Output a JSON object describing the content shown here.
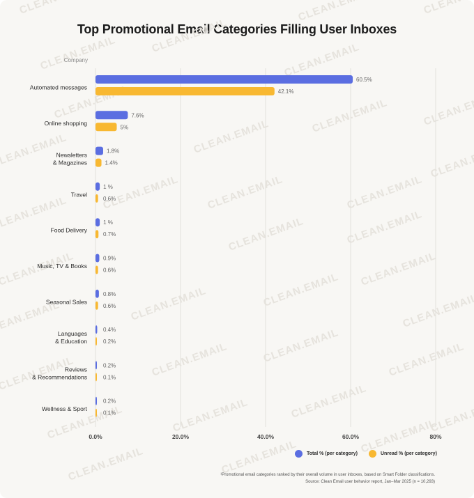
{
  "title": "Top Promotional Email Categories Filling User Inboxes",
  "watermark": "CLEAN.EMAIL",
  "colors": {
    "total": "#5b6ee1",
    "unread": "#f8b831",
    "grid": "#e2e0db"
  },
  "legend": {
    "total": "Total % (per category)",
    "unread": "Unread % (per category)"
  },
  "footnote": "¹Promotional email categories ranked by their overall volume in user inboxes, based on Smart Folder classifications.",
  "source": "Source: Clean Email user behavior report, Jan–Mar 2025 (n = 10,293)",
  "chart_data": {
    "type": "bar",
    "orientation": "horizontal",
    "ylabel": "Company",
    "categories": [
      [
        "Automated messages"
      ],
      [
        "Online shopping"
      ],
      [
        "Newsletters",
        "& Magazines"
      ],
      [
        "Travel"
      ],
      [
        "Food Delivery"
      ],
      [
        "Music, TV & Books"
      ],
      [
        "Seasonal Sales"
      ],
      [
        "Languages",
        "& Education"
      ],
      [
        "Reviews",
        "& Recommendations"
      ],
      [
        "Wellness & Sport"
      ]
    ],
    "series": [
      {
        "name": "Total % (per category)",
        "values": [
          60.5,
          7.6,
          1.8,
          1,
          1,
          0.9,
          0.8,
          0.4,
          0.2,
          0.2
        ],
        "labels": [
          "60.5%",
          "7.6%",
          "1.8%",
          "1 %",
          "1 %",
          "0.9%",
          "0.8%",
          "0.4%",
          "0.2%",
          "0.2%"
        ]
      },
      {
        "name": "Unread % (per category)",
        "values": [
          42.1,
          5,
          1.4,
          0.6,
          0.7,
          0.6,
          0.6,
          0.2,
          0.1,
          0.1
        ],
        "labels": [
          "42.1%",
          "5%",
          "1.4%",
          "0.6%",
          "0.7%",
          "0.6%",
          "0.6%",
          "0.2%",
          "0.1%",
          "0.1%"
        ]
      }
    ],
    "xlim": [
      0,
      80
    ],
    "xticks": [
      0,
      20,
      40,
      60,
      80
    ],
    "xtick_labels": [
      "0.0%",
      "20.0%",
      "40.0%",
      "60.0%",
      "80%"
    ],
    "grid": true,
    "legend_position": "bottom-right"
  }
}
